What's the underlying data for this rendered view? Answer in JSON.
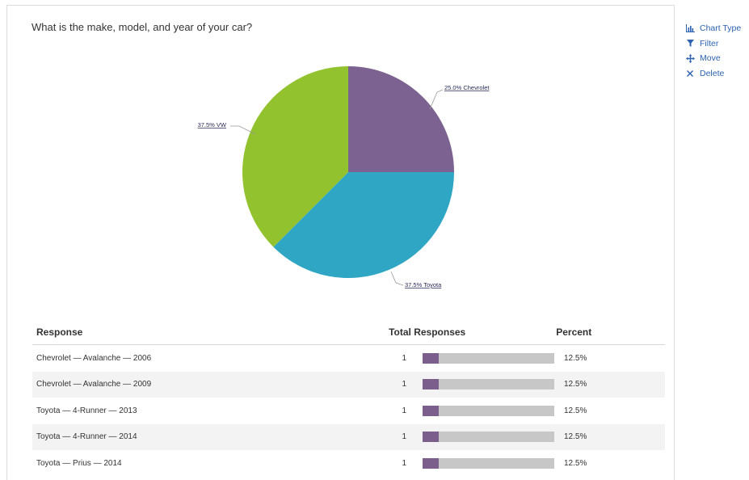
{
  "question": "What is the make, model, and year of your car?",
  "actions": [
    {
      "label": "Chart Type",
      "icon": "bar-chart-icon"
    },
    {
      "label": "Filter",
      "icon": "filter-icon"
    },
    {
      "label": "Move",
      "icon": "move-icon"
    },
    {
      "label": "Delete",
      "icon": "delete-icon"
    }
  ],
  "chart_data": {
    "type": "pie",
    "slices": [
      {
        "label": "25.0% Chevrolet",
        "value": 25.0,
        "color": "#7c6290"
      },
      {
        "label": "37.5% Toyota",
        "value": 37.5,
        "color": "#2ea6c4"
      },
      {
        "label": "37.5% VW",
        "value": 37.5,
        "color": "#92c22e"
      }
    ]
  },
  "table": {
    "headers": {
      "response": "Response",
      "total": "Total Responses",
      "percent": "Percent"
    },
    "rows": [
      {
        "response": "Chevrolet  —  Avalanche  —  2006",
        "total": "1",
        "percent": "12.5%",
        "fraction": 0.125
      },
      {
        "response": "Chevrolet  —  Avalanche  —  2009",
        "total": "1",
        "percent": "12.5%",
        "fraction": 0.125
      },
      {
        "response": "Toyota  —  4-Runner  —  2013",
        "total": "1",
        "percent": "12.5%",
        "fraction": 0.125
      },
      {
        "response": "Toyota  —  4-Runner  —  2014",
        "total": "1",
        "percent": "12.5%",
        "fraction": 0.125
      },
      {
        "response": "Toyota  —  Prius  —  2014",
        "total": "1",
        "percent": "12.5%",
        "fraction": 0.125
      }
    ]
  }
}
